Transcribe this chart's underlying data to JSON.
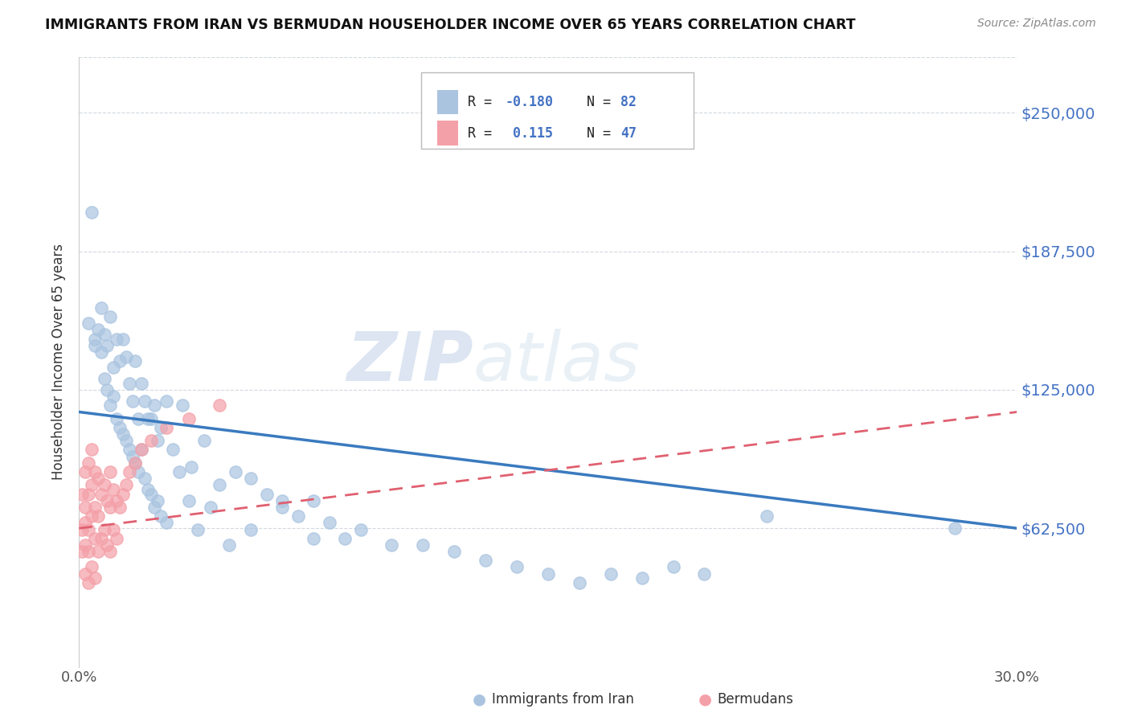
{
  "title": "IMMIGRANTS FROM IRAN VS BERMUDAN HOUSEHOLDER INCOME OVER 65 YEARS CORRELATION CHART",
  "source": "Source: ZipAtlas.com",
  "ylabel": "Householder Income Over 65 years",
  "xlim": [
    0.0,
    0.3
  ],
  "ylim": [
    0,
    275000
  ],
  "yticks": [
    62500,
    125000,
    187500,
    250000
  ],
  "ytick_labels": [
    "$62,500",
    "$125,000",
    "$187,500",
    "$250,000"
  ],
  "xtick_labels": [
    "0.0%",
    "30.0%"
  ],
  "background_color": "#ffffff",
  "grid_color": "#c8d0d8",
  "series1_color": "#aac4e0",
  "series2_color": "#f4a0a8",
  "trendline1_color": "#3a7abf",
  "trendline2_color": "#e06070",
  "series1_label": "Immigrants from Iran",
  "series2_label": "Bermudans",
  "legend_blue_color": "#4472c4",
  "legend_pink_color": "#e87080",
  "iran_x": [
    0.003,
    0.004,
    0.005,
    0.006,
    0.007,
    0.008,
    0.009,
    0.01,
    0.011,
    0.012,
    0.013,
    0.014,
    0.015,
    0.016,
    0.017,
    0.018,
    0.019,
    0.02,
    0.021,
    0.022,
    0.023,
    0.024,
    0.025,
    0.026,
    0.028,
    0.03,
    0.033,
    0.036,
    0.04,
    0.045,
    0.05,
    0.055,
    0.06,
    0.065,
    0.07,
    0.075,
    0.08,
    0.085,
    0.09,
    0.1,
    0.11,
    0.12,
    0.13,
    0.14,
    0.15,
    0.16,
    0.17,
    0.18,
    0.19,
    0.2,
    0.005,
    0.007,
    0.008,
    0.009,
    0.01,
    0.011,
    0.012,
    0.013,
    0.014,
    0.015,
    0.016,
    0.017,
    0.018,
    0.019,
    0.02,
    0.021,
    0.022,
    0.023,
    0.024,
    0.025,
    0.026,
    0.028,
    0.032,
    0.035,
    0.038,
    0.042,
    0.048,
    0.055,
    0.065,
    0.075,
    0.22,
    0.28
  ],
  "iran_y": [
    155000,
    205000,
    148000,
    152000,
    162000,
    150000,
    145000,
    158000,
    135000,
    148000,
    138000,
    148000,
    140000,
    128000,
    120000,
    138000,
    112000,
    128000,
    120000,
    112000,
    112000,
    118000,
    102000,
    108000,
    120000,
    98000,
    118000,
    90000,
    102000,
    82000,
    88000,
    85000,
    78000,
    72000,
    68000,
    75000,
    65000,
    58000,
    62000,
    55000,
    55000,
    52000,
    48000,
    45000,
    42000,
    38000,
    42000,
    40000,
    45000,
    42000,
    145000,
    142000,
    130000,
    125000,
    118000,
    122000,
    112000,
    108000,
    105000,
    102000,
    98000,
    95000,
    92000,
    88000,
    98000,
    85000,
    80000,
    78000,
    72000,
    75000,
    68000,
    65000,
    88000,
    75000,
    62000,
    72000,
    55000,
    62000,
    75000,
    58000,
    68000,
    62500
  ],
  "bermuda_x": [
    0.001,
    0.001,
    0.001,
    0.002,
    0.002,
    0.002,
    0.002,
    0.002,
    0.003,
    0.003,
    0.003,
    0.003,
    0.003,
    0.004,
    0.004,
    0.004,
    0.004,
    0.005,
    0.005,
    0.005,
    0.005,
    0.006,
    0.006,
    0.006,
    0.007,
    0.007,
    0.008,
    0.008,
    0.009,
    0.009,
    0.01,
    0.01,
    0.01,
    0.011,
    0.011,
    0.012,
    0.012,
    0.013,
    0.014,
    0.015,
    0.016,
    0.018,
    0.02,
    0.023,
    0.028,
    0.035,
    0.045
  ],
  "bermuda_y": [
    78000,
    62000,
    52000,
    88000,
    72000,
    65000,
    55000,
    42000,
    92000,
    78000,
    62000,
    52000,
    38000,
    98000,
    82000,
    68000,
    45000,
    88000,
    72000,
    58000,
    40000,
    85000,
    68000,
    52000,
    78000,
    58000,
    82000,
    62000,
    75000,
    55000,
    88000,
    72000,
    52000,
    80000,
    62000,
    75000,
    58000,
    72000,
    78000,
    82000,
    88000,
    92000,
    98000,
    102000,
    108000,
    112000,
    118000
  ],
  "iran_trend_x": [
    0.0,
    0.3
  ],
  "iran_trend_y": [
    115000,
    62500
  ],
  "bermuda_trend_x": [
    0.0,
    0.3
  ],
  "bermuda_trend_y": [
    62500,
    115000
  ]
}
